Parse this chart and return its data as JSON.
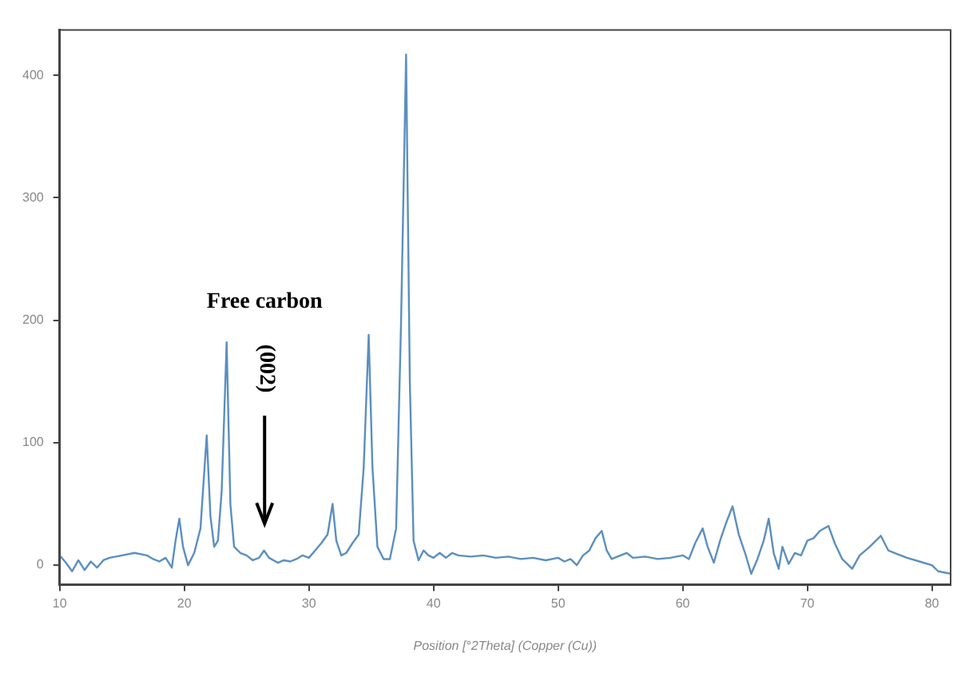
{
  "chart_data": {
    "type": "line",
    "xlabel": "Position [°2Theta] (Copper (Cu))",
    "xlim": [
      10,
      81.5
    ],
    "xticks": [
      10,
      20,
      30,
      40,
      50,
      60,
      70,
      80
    ],
    "ylim": [
      -16,
      437
    ],
    "yticks": [
      0,
      100,
      200,
      300,
      400
    ],
    "grid": false,
    "marker": "none",
    "line_style": "solid",
    "annotations": [
      "Free carbon",
      "(002)"
    ],
    "series": [
      {
        "color": "#5b8fbf",
        "x": [
          10,
          10.5,
          11,
          11.5,
          12,
          12.5,
          13,
          13.5,
          14,
          15,
          16,
          17,
          17.5,
          18,
          18.5,
          19,
          19.3,
          19.6,
          19.9,
          20.3,
          20.8,
          21.3,
          21.8,
          22.1,
          22.4,
          22.7,
          23.0,
          23.4,
          23.7,
          24.0,
          24.5,
          25,
          25.5,
          26,
          26.4,
          26.8,
          27.5,
          28,
          28.5,
          29,
          29.5,
          30,
          30.5,
          31,
          31.5,
          31.9,
          32.2,
          32.6,
          33,
          33.5,
          34,
          34.4,
          34.8,
          35.1,
          35.5,
          36,
          36.5,
          37,
          37.4,
          37.8,
          38.1,
          38.4,
          38.8,
          39.2,
          39.6,
          40,
          40.5,
          41,
          41.5,
          42,
          43,
          44,
          45,
          46,
          47,
          48,
          49,
          50,
          50.5,
          51,
          51.5,
          52,
          52.5,
          53,
          53.5,
          53.9,
          54.3,
          55,
          55.5,
          56,
          57,
          58,
          59,
          60,
          60.5,
          61,
          61.6,
          62,
          62.5,
          63,
          63.5,
          64,
          64.5,
          65,
          65.5,
          66,
          66.5,
          66.9,
          67.3,
          67.7,
          68,
          68.5,
          69,
          69.5,
          70,
          70.5,
          71,
          71.7,
          72.2,
          72.8,
          73.6,
          74.2,
          75,
          75.9,
          76.5,
          77,
          78,
          79,
          80,
          80.5,
          81.5
        ],
        "values": [
          8,
          2,
          -5,
          4,
          -4,
          3,
          -2,
          4,
          6,
          8,
          10,
          8,
          5,
          3,
          6,
          -2,
          20,
          38,
          15,
          0,
          10,
          30,
          106,
          40,
          15,
          20,
          60,
          182,
          50,
          15,
          10,
          8,
          4,
          6,
          12,
          6,
          2,
          4,
          3,
          5,
          8,
          6,
          12,
          18,
          25,
          50,
          20,
          8,
          10,
          18,
          25,
          80,
          188,
          80,
          15,
          5,
          5,
          30,
          200,
          417,
          150,
          20,
          4,
          12,
          8,
          6,
          10,
          6,
          10,
          8,
          7,
          8,
          6,
          7,
          5,
          6,
          4,
          6,
          3,
          5,
          0,
          8,
          12,
          22,
          28,
          12,
          5,
          8,
          10,
          6,
          7,
          5,
          6,
          8,
          5,
          18,
          30,
          15,
          2,
          20,
          35,
          48,
          25,
          10,
          -7,
          5,
          20,
          38,
          10,
          -3,
          15,
          1,
          10,
          8,
          20,
          22,
          28,
          32,
          18,
          5,
          -3,
          8,
          15,
          24,
          12,
          10,
          6,
          3,
          0,
          -5,
          -7
        ]
      }
    ]
  }
}
